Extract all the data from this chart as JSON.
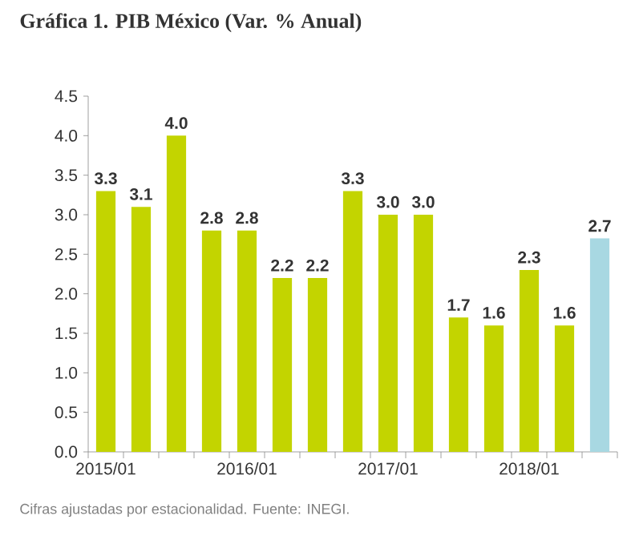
{
  "chart_data": {
    "type": "bar",
    "title": "Gráfica 1. PIB México (Var. % Anual)",
    "categories": [
      "2015/01",
      null,
      null,
      null,
      "2016/01",
      null,
      null,
      null,
      "2017/01",
      null,
      null,
      null,
      "2018/01",
      null,
      null
    ],
    "values": [
      3.3,
      3.1,
      4.0,
      2.8,
      2.8,
      2.2,
      2.2,
      3.3,
      3.0,
      3.0,
      1.7,
      1.6,
      2.3,
      1.6,
      2.7
    ],
    "value_labels": [
      "3.3",
      "3.1",
      "4.0",
      "2.8",
      "2.8",
      "2.2",
      "2.2",
      "3.3",
      "3.0",
      "3.0",
      "1.7",
      "1.6",
      "2.3",
      "1.6",
      "2.7"
    ],
    "colors": [
      "#c3d400",
      "#c3d400",
      "#c3d400",
      "#c3d400",
      "#c3d400",
      "#c3d400",
      "#c3d400",
      "#c3d400",
      "#c3d400",
      "#c3d400",
      "#c3d400",
      "#c3d400",
      "#c3d400",
      "#c3d400",
      "#a8d8e2"
    ],
    "ylim": [
      0,
      4.5
    ],
    "yticks": [
      {
        "value": 0,
        "label": "0.0"
      },
      {
        "value": 0.5,
        "label": "0.5"
      },
      {
        "value": 1,
        "label": "1.0"
      },
      {
        "value": 1.5,
        "label": "1.5"
      },
      {
        "value": 2,
        "label": "2.0"
      },
      {
        "value": 2.5,
        "label": "2.5"
      },
      {
        "value": 3,
        "label": "3.0"
      },
      {
        "value": 3.5,
        "label": "3.5"
      },
      {
        "value": 4,
        "label": "4.0"
      },
      {
        "value": 4.5,
        "label": "4.5"
      }
    ],
    "annotations": [
      "Cifras ajustadas por estacionalidad. Fuente: INEGI."
    ]
  }
}
